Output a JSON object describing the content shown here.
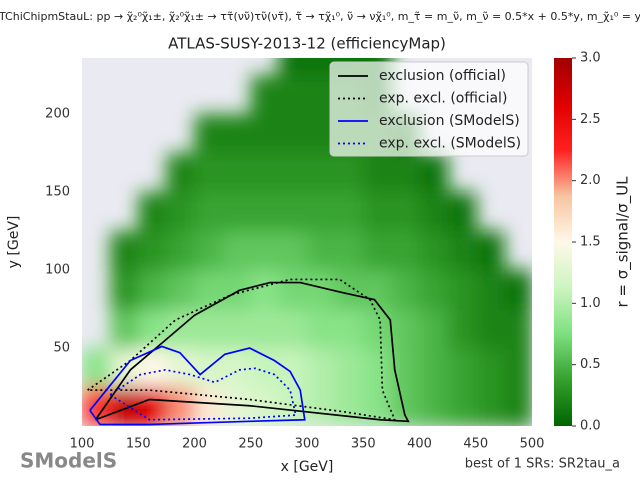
{
  "chart_data": {
    "type": "heatmap",
    "supertitle": "TChiChipmStauL: pp → χ̃₂⁰χ̃₁±, χ̃₂⁰χ̃₁± → ττ̃(νν̃)τν̃(ντ̃), τ̃ → τχ̃₁⁰, ν̃ → νχ̃₁⁰, m_τ̃ = m_ν̃, m_ν̃ = 0.5*x + 0.5*y, m_χ̃₁⁰ = y",
    "title": "ATLAS-SUSY-2013-12 (efficiencyMap)",
    "xlabel": "x [GeV]",
    "ylabel": "y [GeV]",
    "cbar_label": "r = σ_signal/σ_UL",
    "footer": "best of 1 SRs: SR2tau_a",
    "logo_text": "SModelS",
    "xlim": [
      100,
      500
    ],
    "ylim": [
      0,
      236
    ],
    "xticks": [
      100,
      150,
      200,
      250,
      300,
      350,
      400,
      450,
      500
    ],
    "yticks": [
      50,
      100,
      150,
      200
    ],
    "clim": [
      0,
      3
    ],
    "cticks": [
      {
        "value": 0,
        "label": "0.0"
      },
      0.5,
      {
        "value": 1,
        "label": "1.0"
      },
      1.5,
      {
        "value": 2,
        "label": "2.0"
      },
      2.5,
      {
        "value": 3,
        "label": "3.0"
      }
    ],
    "colormap": [
      "#006400",
      "#33a02c",
      "#7ee07e",
      "#ccf5c0",
      "#fff8e8",
      "#f7c4a0",
      "#ff2020",
      "#e00000",
      "#a00000"
    ],
    "xbins": [
      100,
      125,
      150,
      175,
      200,
      225,
      250,
      275,
      300,
      325,
      350,
      375,
      400,
      425,
      450,
      475,
      500
    ],
    "ybins": [
      0,
      25,
      50,
      75,
      100,
      125,
      150,
      175,
      200,
      225,
      250
    ],
    "z": [
      [
        2.2,
        2.8,
        2.6,
        2.0,
        1.6,
        1.3,
        1.2,
        1.1,
        1.0,
        0.9,
        0.8,
        0.6,
        0.5,
        0.4,
        0.3,
        0.2
      ],
      [
        0.8,
        1.3,
        1.5,
        1.3,
        1.2,
        1.2,
        1.1,
        1.1,
        1.0,
        0.9,
        0.8,
        0.6,
        0.5,
        0.4,
        0.3,
        0.2
      ],
      [
        null,
        0.6,
        0.8,
        0.9,
        0.9,
        0.9,
        0.9,
        0.9,
        0.8,
        0.8,
        0.7,
        0.6,
        0.5,
        0.3,
        0.2,
        0.2
      ],
      [
        null,
        0.3,
        0.5,
        0.6,
        0.7,
        0.7,
        0.8,
        0.7,
        0.7,
        0.6,
        0.6,
        0.5,
        0.4,
        0.3,
        0.2,
        0.1
      ],
      [
        null,
        0.2,
        0.3,
        0.4,
        0.5,
        0.6,
        0.6,
        0.6,
        0.5,
        0.5,
        0.4,
        0.4,
        0.3,
        0.2,
        0.1,
        null
      ],
      [
        null,
        null,
        0.2,
        0.3,
        0.4,
        0.4,
        0.4,
        0.4,
        0.4,
        0.4,
        0.3,
        0.3,
        0.2,
        0.1,
        null,
        null
      ],
      [
        null,
        null,
        null,
        0.2,
        0.3,
        0.3,
        0.3,
        0.3,
        0.3,
        0.3,
        0.2,
        0.2,
        0.1,
        null,
        null,
        null
      ],
      [
        null,
        null,
        null,
        null,
        0.2,
        0.2,
        0.2,
        0.2,
        0.2,
        0.2,
        0.2,
        0.1,
        null,
        null,
        null,
        null
      ],
      [
        null,
        null,
        null,
        null,
        null,
        null,
        0.2,
        0.2,
        0.2,
        0.2,
        0.1,
        null,
        null,
        null,
        null,
        null
      ],
      [
        null,
        null,
        null,
        null,
        null,
        null,
        null,
        0.1,
        0.1,
        0.1,
        0.1,
        null,
        null,
        null,
        null,
        null
      ]
    ],
    "series": [
      {
        "name": "exclusion (official)",
        "color": "#000000",
        "dash": "solid",
        "x": [
          112,
          143,
          174,
          200,
          240,
          267,
          294,
          329,
          360,
          374,
          378,
          387,
          390,
          365,
          249,
          160,
          112
        ],
        "y": [
          4,
          36,
          55,
          71,
          87,
          92,
          92,
          86,
          81,
          68,
          36,
          7,
          3,
          4,
          13,
          17,
          4
        ]
      },
      {
        "name": "exp. excl. (official)",
        "color": "#000000",
        "dash": "dotted",
        "x": [
          105,
          143,
          183,
          232,
          285,
          329,
          356,
          365,
          367,
          378,
          334,
          249,
          160,
          105
        ],
        "y": [
          23,
          42,
          68,
          84,
          94,
          94,
          81,
          68,
          23,
          4,
          9,
          17,
          23,
          23
        ]
      },
      {
        "name": "exclusion (SModelS)",
        "color": "#0000ff",
        "dash": "solid",
        "x": [
          107,
          125,
          143,
          171,
          187,
          205,
          227,
          249,
          271,
          285,
          294,
          298,
          249,
          160,
          116,
          107
        ],
        "y": [
          10,
          26,
          42,
          51,
          47,
          33,
          46,
          50,
          42,
          35,
          23,
          4,
          3,
          1,
          1,
          10
        ]
      },
      {
        "name": "exp. excl. (SModelS)",
        "color": "#0000ff",
        "dash": "dotted",
        "x": [
          125,
          152,
          174,
          196,
          218,
          240,
          254,
          271,
          285,
          290,
          249,
          160,
          125
        ],
        "y": [
          20,
          33,
          36,
          33,
          28,
          36,
          37,
          33,
          23,
          7,
          5,
          4,
          20
        ]
      }
    ]
  }
}
